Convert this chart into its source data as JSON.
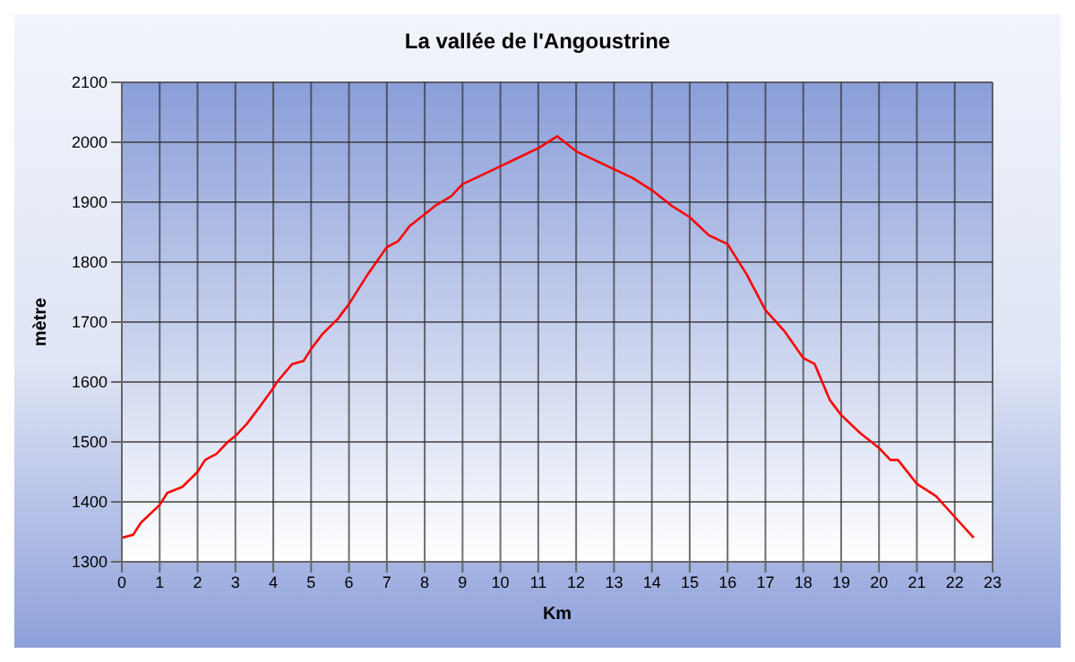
{
  "chart_data": {
    "type": "line",
    "title": "La vallée de l'Angoustrine",
    "xlabel": "Km",
    "ylabel": "mètre",
    "xlim": [
      0,
      23
    ],
    "xticks": [
      0,
      1,
      2,
      3,
      4,
      5,
      6,
      7,
      8,
      9,
      10,
      11,
      12,
      13,
      14,
      15,
      16,
      17,
      18,
      19,
      20,
      21,
      22,
      23
    ],
    "ylim": [
      1300,
      2100
    ],
    "yticks": [
      1300,
      1400,
      1500,
      1600,
      1700,
      1800,
      1900,
      2000,
      2100
    ],
    "grid": true,
    "marker": "none",
    "line_style": "solid",
    "series": [
      {
        "color": "#ff0000",
        "x": [
          0,
          0.3,
          0.5,
          1,
          1.2,
          1.6,
          2,
          2.2,
          2.5,
          2.8,
          3,
          3.3,
          3.6,
          4,
          4.1,
          4.5,
          4.8,
          5,
          5.3,
          5.7,
          6,
          6.5,
          7,
          7.3,
          7.6,
          8,
          8.3,
          8.7,
          9,
          9.5,
          10,
          10.5,
          11,
          11.5,
          12,
          12.5,
          13,
          13.5,
          14,
          14.5,
          15,
          15.5,
          16,
          16.5,
          17,
          17.5,
          18,
          18.3,
          18.7,
          19,
          19.5,
          20,
          20.3,
          20.5,
          21,
          21.5,
          22,
          22.5
        ],
        "values": [
          1340,
          1345,
          1365,
          1395,
          1415,
          1425,
          1450,
          1470,
          1480,
          1500,
          1510,
          1530,
          1555,
          1590,
          1600,
          1630,
          1635,
          1655,
          1680,
          1705,
          1730,
          1780,
          1825,
          1835,
          1860,
          1880,
          1895,
          1910,
          1930,
          1945,
          1960,
          1975,
          1990,
          2010,
          1985,
          1970,
          1955,
          1940,
          1920,
          1895,
          1875,
          1845,
          1830,
          1780,
          1720,
          1685,
          1640,
          1630,
          1570,
          1545,
          1515,
          1490,
          1470,
          1470,
          1430,
          1410,
          1375,
          1340
        ]
      }
    ]
  }
}
